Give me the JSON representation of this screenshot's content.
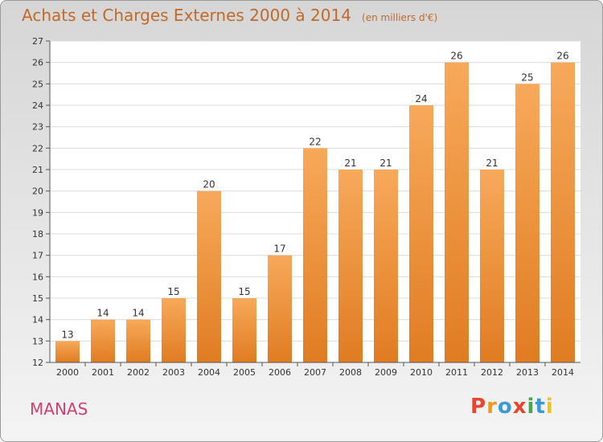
{
  "header": {
    "title": "Achats et Charges Externes 2000 à 2014",
    "unit": "(en milliers d'€)"
  },
  "footer": {
    "commune": "MANAS",
    "logo_text": "Proxiti"
  },
  "colors": {
    "bar_light": "#f7a95a",
    "bar_dark": "#e07c22",
    "title": "#c06a2a",
    "commune": "#d2426e",
    "logo": [
      "#e8452c",
      "#f29a1b",
      "#3a9ad9",
      "#e8452c",
      "#46a84a",
      "#3a9ad9",
      "#f2c21b"
    ]
  },
  "chart_data": {
    "type": "bar",
    "categories": [
      "2000",
      "2001",
      "2002",
      "2003",
      "2004",
      "2005",
      "2006",
      "2007",
      "2008",
      "2009",
      "2010",
      "2011",
      "2012",
      "2013",
      "2014"
    ],
    "values": [
      13,
      14,
      14,
      15,
      20,
      15,
      17,
      22,
      21,
      21,
      24,
      26,
      21,
      25,
      26
    ],
    "title": "Achats et Charges Externes 2000 à 2014",
    "ylim": [
      12,
      27
    ],
    "yticks": [
      12,
      13,
      14,
      15,
      16,
      17,
      18,
      19,
      20,
      21,
      22,
      23,
      24,
      25,
      26,
      27
    ],
    "grid": true
  }
}
